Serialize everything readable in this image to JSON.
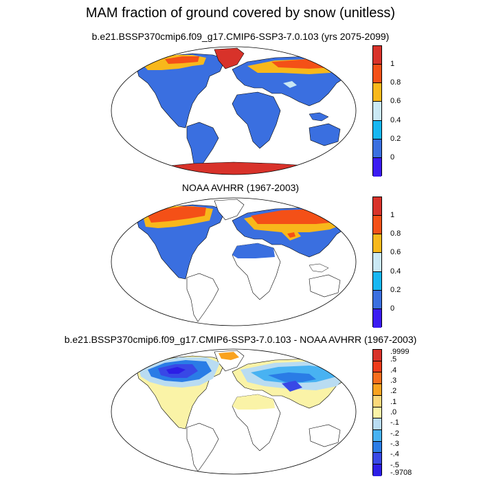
{
  "main_title": "MAM fraction of ground covered by snow (unitless)",
  "colors": {
    "c0": "#3b1bf2",
    "c1": "#3a6fe0",
    "c2": "#17b7f2",
    "c3": "#cae8f4",
    "c4": "#f8b81b",
    "c5": "#f45017",
    "c6": "#d8322a",
    "diff_m5": "#2c1ee6",
    "diff_m4": "#3848e6",
    "diff_m3": "#2a7ce6",
    "diff_m2": "#48b2f2",
    "diff_m1": "#b9dcf2",
    "diff_0": "#faf3a7",
    "diff_p1": "#fbd87a",
    "diff_p2": "#f9a21f",
    "diff_p3": "#f66d1c",
    "diff_p4": "#ee3a1a",
    "diff_p5": "#d8322a"
  },
  "panels": [
    {
      "title": "b.e21.BSSP370cmip6.f09_g17.CMIP6-SSP3-7.0.103 (yrs 2075-2099)",
      "colorbar_labels": [
        "1",
        "0.8",
        "0.6",
        "0.4",
        "0.2",
        "0"
      ]
    },
    {
      "title": "NOAA AVHRR (1967-2003)",
      "colorbar_labels": [
        "1",
        "0.8",
        "0.6",
        "0.4",
        "0.2",
        "0"
      ]
    },
    {
      "title": "b.e21.BSSP370cmip6.f09_g17.CMIP6-SSP3-7.0.103 - NOAA AVHRR (1967-2003)",
      "colorbar_labels": [
        ".9999",
        ".5",
        ".4",
        ".3",
        ".2",
        ".1",
        ".0",
        "-.1",
        "-.2",
        "-.3",
        "-.4",
        "-.5",
        "-.9708"
      ]
    }
  ]
}
